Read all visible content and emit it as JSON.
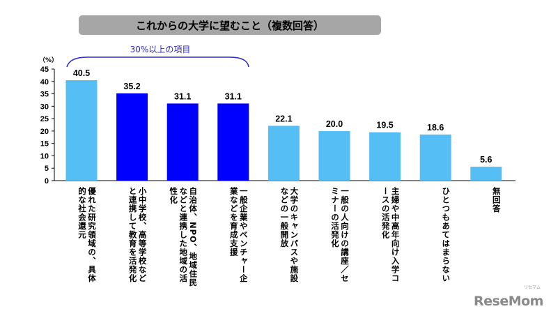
{
  "chart_data": {
    "type": "bar",
    "title": "これからの大学に望むこと（複数回答）",
    "ylabel": "（%）",
    "ylim": [
      0,
      45
    ],
    "yticks": [
      0,
      5,
      10,
      15,
      20,
      25,
      30,
      35,
      40,
      45
    ],
    "grid": false,
    "categories": [
      "優れた研究領域の、具体的な社会還元",
      "小中学校、高等学校などと連携して教育を活発化",
      "自治体、NPO、地域住民などと連携した地域の活性化",
      "一般企業やベンチャー企業などを育成支援",
      "大学のキャンパスや施設などの一般開放",
      "一般の人向けの講座／セミナーの活発化",
      "主婦や中高年向け入学コースの活発化",
      "ひとつもあてはまらない",
      "無回答"
    ],
    "values": [
      40.5,
      35.2,
      31.1,
      31.1,
      22.1,
      20.0,
      19.5,
      18.6,
      5.6
    ],
    "data_labels": [
      "40.5",
      "35.2",
      "31.1",
      "31.1",
      "22.1",
      "20.0",
      "19.5",
      "18.6",
      "5.6"
    ],
    "bar_colors": [
      "#55bff5",
      "#0000ff",
      "#0000ff",
      "#0000ff",
      "#55bff5",
      "#55bff5",
      "#55bff5",
      "#55bff5",
      "#55bff5"
    ],
    "annotation": "30%以上の項目",
    "annotation_color": "#2b2bc4"
  },
  "logo": {
    "text": "ReseMom",
    "kana": "リセマム"
  }
}
